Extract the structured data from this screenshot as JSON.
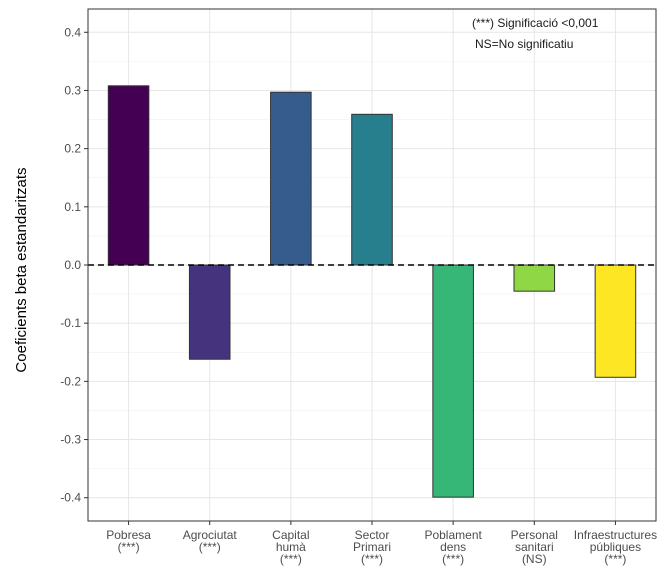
{
  "chart_data": {
    "type": "bar",
    "ylabel": "Coeficients beta estandaritzats",
    "xlabel": "",
    "ylim": [
      -0.44,
      0.44
    ],
    "yticks": [
      "-0.4",
      "-0.3",
      "-0.2",
      "-0.1",
      "0.0",
      "0.1",
      "0.2",
      "0.3",
      "0.4"
    ],
    "grid": true,
    "reference_line": 0,
    "annotations": [
      "(***) Significació <0,001",
      "NS=No significatiu"
    ],
    "categories": [
      {
        "lines": [
          "Pobresa",
          "(***)"
        ],
        "value": 0.308,
        "color": "#440154"
      },
      {
        "lines": [
          "Agrociutat",
          "(***)"
        ],
        "value": -0.162,
        "color": "#46337E"
      },
      {
        "lines": [
          "Capital",
          "humà",
          "(***)"
        ],
        "value": 0.297,
        "color": "#365C8D"
      },
      {
        "lines": [
          "Sector",
          "Primari",
          "(***)"
        ],
        "value": 0.259,
        "color": "#277F8E"
      },
      {
        "lines": [
          "Poblament",
          "dens",
          "(***)"
        ],
        "value": -0.399,
        "color": "#36B677"
      },
      {
        "lines": [
          "Personal",
          "sanitari",
          "(NS)"
        ],
        "value": -0.045,
        "color": "#8FD744"
      },
      {
        "lines": [
          "Infraestructures",
          "públiques",
          "(***)"
        ],
        "value": -0.193,
        "color": "#FDE725"
      }
    ]
  }
}
